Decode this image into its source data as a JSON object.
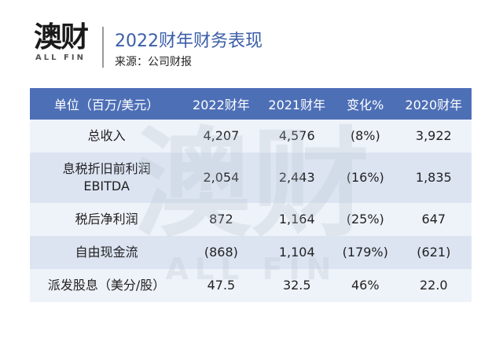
{
  "logo": {
    "mark": "澳财",
    "sub": "ALL FIN"
  },
  "header": {
    "title": "2022财年财务表现",
    "source": "来源：公司财报"
  },
  "table": {
    "columns": [
      "单位（百万/美元）",
      "2022财年",
      "2021财年",
      "变化%",
      "2020财年"
    ],
    "rows": [
      [
        [
          "总收入"
        ],
        "4,207",
        "4,576",
        "(8%)",
        "3,922"
      ],
      [
        [
          "息税折旧前利润",
          "EBITDA"
        ],
        "2,054",
        "2,443",
        "(16%)",
        "1,835"
      ],
      [
        [
          "税后净利润"
        ],
        "872",
        "1,164",
        "(25%)",
        "647"
      ],
      [
        [
          "自由现金流"
        ],
        "(868)",
        "1,104",
        "(179%)",
        "(621)"
      ],
      [
        [
          "派发股息（美分/股）"
        ],
        "47.5",
        "32.5",
        "46%",
        "22.0"
      ]
    ]
  }
}
